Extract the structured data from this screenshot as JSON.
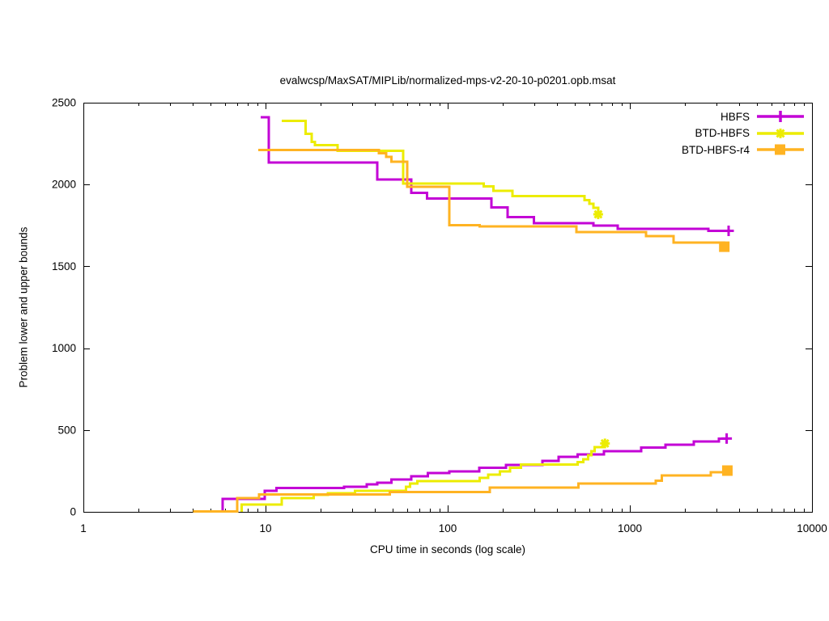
{
  "chart_data": {
    "type": "line",
    "title": "evalwcsp/MaxSAT/MIPLib/normalized-mps-v2-20-10-p0201.opb.msat",
    "xlabel": "CPU time in seconds (log scale)",
    "ylabel": "Problem lower and upper bounds",
    "x_scale": "log",
    "xlim": [
      1,
      10000
    ],
    "ylim": [
      0,
      2500
    ],
    "x_ticks": [
      1,
      10,
      100,
      1000,
      10000
    ],
    "x_tick_labels": [
      "1",
      "10",
      "100",
      "1000",
      "10000"
    ],
    "y_ticks": [
      0,
      500,
      1000,
      1500,
      2000,
      2500
    ],
    "y_tick_labels": [
      "0",
      "500",
      "1000",
      "1500",
      "2000",
      "2500"
    ],
    "grid": false,
    "legend_position": "top-right-inside",
    "series": [
      {
        "name": "HBFS",
        "color": "#C303D6",
        "marker": "plus",
        "upper_bound": [
          [
            9.4,
            2410
          ],
          [
            10.4,
            2135
          ],
          [
            41,
            2030
          ],
          [
            63,
            1950
          ],
          [
            77,
            1915
          ],
          [
            174,
            1860
          ],
          [
            213,
            1800
          ],
          [
            297,
            1765
          ],
          [
            630,
            1750
          ],
          [
            857,
            1730
          ],
          [
            2700,
            1717
          ],
          [
            3485,
            1717
          ]
        ],
        "lower_bound": [
          [
            5.8,
            0
          ],
          [
            5.8,
            80
          ],
          [
            9.9,
            128
          ],
          [
            11.5,
            145
          ],
          [
            27,
            152
          ],
          [
            36,
            168
          ],
          [
            41,
            178
          ],
          [
            49,
            198
          ],
          [
            63,
            217
          ],
          [
            78,
            237
          ],
          [
            102,
            247
          ],
          [
            149,
            270
          ],
          [
            209,
            287
          ],
          [
            331,
            312
          ],
          [
            407,
            335
          ],
          [
            516,
            350
          ],
          [
            721,
            371
          ],
          [
            1156,
            394
          ],
          [
            1569,
            410
          ],
          [
            2250,
            430
          ],
          [
            3075,
            448
          ],
          [
            3400,
            448
          ]
        ]
      },
      {
        "name": "BTD-HBFS",
        "color": "#ECEC00",
        "marker": "star",
        "upper_bound": [
          [
            12.3,
            2390
          ],
          [
            16.6,
            2310
          ],
          [
            17.9,
            2260
          ],
          [
            18.7,
            2240
          ],
          [
            24.9,
            2205
          ],
          [
            57,
            2005
          ],
          [
            158,
            1988
          ],
          [
            178,
            1962
          ],
          [
            227,
            1930
          ],
          [
            564,
            1905
          ],
          [
            600,
            1882
          ],
          [
            632,
            1858
          ],
          [
            670,
            1818
          ]
        ],
        "lower_bound": [
          [
            7.4,
            0
          ],
          [
            7.4,
            45
          ],
          [
            12.3,
            84
          ],
          [
            18.4,
            104
          ],
          [
            22,
            114
          ],
          [
            31,
            128
          ],
          [
            59,
            153
          ],
          [
            62,
            173
          ],
          [
            68,
            188
          ],
          [
            150,
            208
          ],
          [
            167,
            227
          ],
          [
            193,
            247
          ],
          [
            220,
            270
          ],
          [
            252,
            288
          ],
          [
            516,
            305
          ],
          [
            555,
            320
          ],
          [
            590,
            345
          ],
          [
            615,
            370
          ],
          [
            640,
            395
          ],
          [
            730,
            418
          ]
        ]
      },
      {
        "name": "BTD-HBFS-r4",
        "color": "#FFB322",
        "marker": "square",
        "upper_bound": [
          [
            9.1,
            2212
          ],
          [
            42,
            2190
          ],
          [
            46,
            2170
          ],
          [
            49,
            2140
          ],
          [
            60,
            1985
          ],
          [
            102,
            1752
          ],
          [
            150,
            1745
          ],
          [
            510,
            1710
          ],
          [
            1230,
            1685
          ],
          [
            1740,
            1645
          ],
          [
            3300,
            1620
          ]
        ],
        "lower_bound": [
          [
            4.0,
            2
          ],
          [
            7.0,
            85
          ],
          [
            9.2,
            105
          ],
          [
            48,
            122
          ],
          [
            170,
            148
          ],
          [
            521,
            173
          ],
          [
            1390,
            190
          ],
          [
            1500,
            222
          ],
          [
            2776,
            242
          ],
          [
            3430,
            252
          ]
        ]
      }
    ]
  }
}
